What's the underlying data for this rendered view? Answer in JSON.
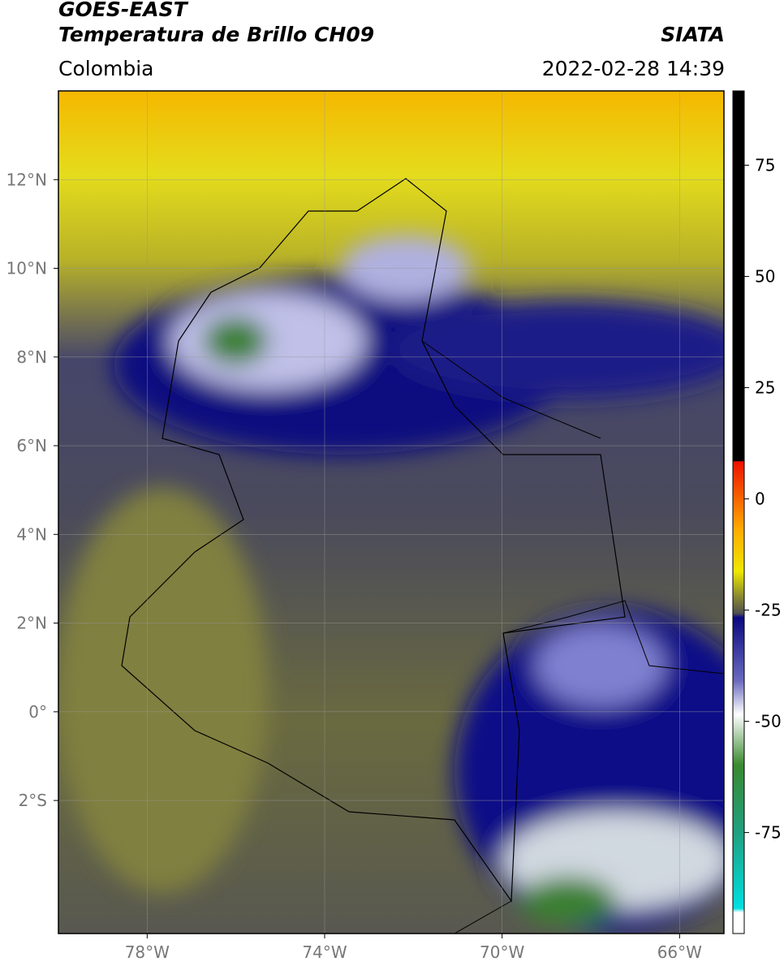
{
  "header": {
    "title": "GOES-EAST",
    "subtitle": "Temperatura de Brillo CH09",
    "source": "SIATA",
    "region": "Colombia",
    "datetime": "2022-02-28 14:39"
  },
  "map": {
    "xlim": [
      -80,
      -65
    ],
    "ylim": [
      -5,
      14
    ],
    "xticks": [
      {
        "value": -78,
        "label": "78°W"
      },
      {
        "value": -74,
        "label": "74°W"
      },
      {
        "value": -70,
        "label": "70°W"
      },
      {
        "value": -66,
        "label": "66°W"
      }
    ],
    "yticks": [
      {
        "value": 12,
        "label": "12°N"
      },
      {
        "value": 10,
        "label": "10°N"
      },
      {
        "value": 8,
        "label": "8°N"
      },
      {
        "value": 6,
        "label": "6°N"
      },
      {
        "value": 4,
        "label": "4°N"
      },
      {
        "value": 2,
        "label": "2°N"
      },
      {
        "value": 0,
        "label": "0°"
      },
      {
        "value": -2,
        "label": "2°S"
      }
    ],
    "grid": true
  },
  "colorbar": {
    "lim": [
      -97.7,
      91.7
    ],
    "ticks": [
      75,
      50,
      25,
      0,
      -25,
      -50,
      -75
    ]
  }
}
